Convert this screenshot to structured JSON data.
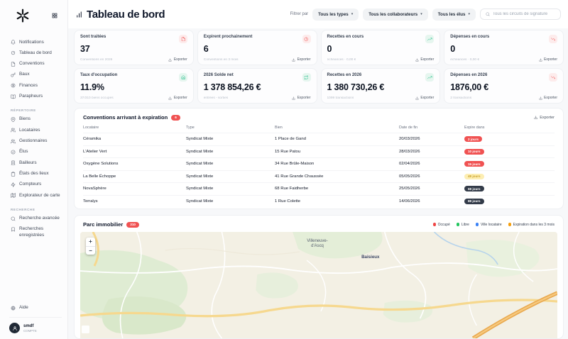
{
  "labels": {
    "export": "Exporter",
    "caret": "▾"
  },
  "colors": {
    "accent_red": "#f05252",
    "green": "#10b981",
    "dark_badge": "#333b49",
    "yellow_badge": "#fdeeb3"
  },
  "sidebar": {
    "sections": [
      {
        "label": "",
        "items": [
          {
            "icon": "bell",
            "label": "Notifications"
          },
          {
            "icon": "gauge",
            "label": "Tableau de bord"
          },
          {
            "icon": "file",
            "label": "Conventions"
          },
          {
            "icon": "key",
            "label": "Baux"
          },
          {
            "icon": "coin",
            "label": "Finances"
          },
          {
            "icon": "book",
            "label": "Parapheurs"
          }
        ]
      },
      {
        "label": "RÉPERTOIRE",
        "items": [
          {
            "icon": "pin",
            "label": "Biens"
          },
          {
            "icon": "users",
            "label": "Locataires"
          },
          {
            "icon": "users",
            "label": "Gestionnaires"
          },
          {
            "icon": "check-circle",
            "label": "Élus"
          },
          {
            "icon": "building",
            "label": "Bailleurs"
          },
          {
            "icon": "clipboard",
            "label": "États des lieux"
          },
          {
            "icon": "zap",
            "label": "Compteurs"
          },
          {
            "icon": "map",
            "label": "Explorateur de carte"
          }
        ]
      },
      {
        "label": "RECHERCHE",
        "items": [
          {
            "icon": "search",
            "label": "Recherche avancée"
          },
          {
            "icon": "bookmark",
            "label": "Recherches enregistrées"
          }
        ]
      }
    ],
    "footer": {
      "help": "Aide",
      "user": "smdf",
      "role": "COMPTE"
    }
  },
  "header": {
    "title": "Tableau de bord",
    "filter_label": "Filtrer par",
    "filters": [
      "Tous les types",
      "Tous les collaborateurs",
      "Tous les élus"
    ],
    "search_placeholder": "Tous les circuits de signature"
  },
  "kpis": [
    {
      "title": "Sont traitées",
      "value": "37",
      "subtitle": "Conventions en 2026",
      "icon": "file",
      "tone": "red"
    },
    {
      "title": "Expirent prochainement",
      "value": "6",
      "subtitle": "Conventions en 3 mois",
      "icon": "clock",
      "tone": "red"
    },
    {
      "title": "Recettes en cours",
      "value": "0",
      "subtitle": "échéances · 0,00 €",
      "icon": "trend-up",
      "tone": "green"
    },
    {
      "title": "Dépenses en cours",
      "value": "0",
      "subtitle": "échéances · 0,00 €",
      "icon": "trend-down",
      "tone": "red"
    },
    {
      "title": "Taux d'occupation",
      "value": "11.9%",
      "subtitle": "37/310 biens occupés",
      "icon": "home",
      "tone": "green"
    },
    {
      "title": "2026 Solde net",
      "value": "1 378 854,26 €",
      "subtitle": "entrées - sorties",
      "icon": "exchange",
      "tone": "green"
    },
    {
      "title": "Recettes en 2026",
      "value": "1 380 730,26 €",
      "subtitle": "1099 transactions",
      "icon": "trend-up",
      "tone": "green"
    },
    {
      "title": "Dépenses en 2026",
      "value": "1876,00 €",
      "subtitle": "2 transactions",
      "icon": "trend-down",
      "tone": "red"
    }
  ],
  "expirations": {
    "title": "Conventions arrivant à expiration",
    "count": "6",
    "columns": [
      "Locataire",
      "Type",
      "Bien",
      "Date de fin",
      "Expire dans"
    ],
    "rows": [
      {
        "locataire": "Céramika",
        "type": "Syndicat Mixte",
        "bien": "1 Place de Gand",
        "date": "20/03/2026",
        "expire": "2 jours",
        "tone": "red"
      },
      {
        "locataire": "L'Atelier Vert",
        "type": "Syndicat Mixte",
        "bien": "15 Rue Patou",
        "date": "28/03/2026",
        "expire": "10 jours",
        "tone": "red"
      },
      {
        "locataire": "Oxygène Solutions",
        "type": "Syndicat Mixte",
        "bien": "34 Rue Brûle-Maison",
        "date": "02/04/2026",
        "expire": "15 jours",
        "tone": "red"
      },
      {
        "locataire": "La Belle Échoppe",
        "type": "Syndicat Mixte",
        "bien": "41 Rue Grande Chaussée",
        "date": "05/05/2026",
        "expire": "48 jours",
        "tone": "yellow"
      },
      {
        "locataire": "NovaSphère",
        "type": "Syndicat Mixte",
        "bien": "68 Rue Faidherbe",
        "date": "25/05/2026",
        "expire": "68 jours",
        "tone": "dark"
      },
      {
        "locataire": "Terralys",
        "type": "Syndicat Mixte",
        "bien": "1 Rue Colette",
        "date": "14/06/2026",
        "expire": "88 jours",
        "tone": "dark"
      }
    ]
  },
  "parc": {
    "title": "Parc immobilier",
    "count": "310",
    "legend": [
      {
        "label": "Occupé",
        "color": "#ef4444"
      },
      {
        "label": "Libre",
        "color": "#22c55e"
      },
      {
        "label": "Ville locataire",
        "color": "#3b82f6"
      },
      {
        "label": "Expiration dans les 3 mois",
        "color": "#f59e0b"
      }
    ],
    "map": {
      "zoom_in": "+",
      "zoom_out": "−",
      "labels": {
        "city_top_line1": "Villeneuve-",
        "city_top_line2": "d'Ascq",
        "city_mid": "Baisieux"
      }
    }
  }
}
